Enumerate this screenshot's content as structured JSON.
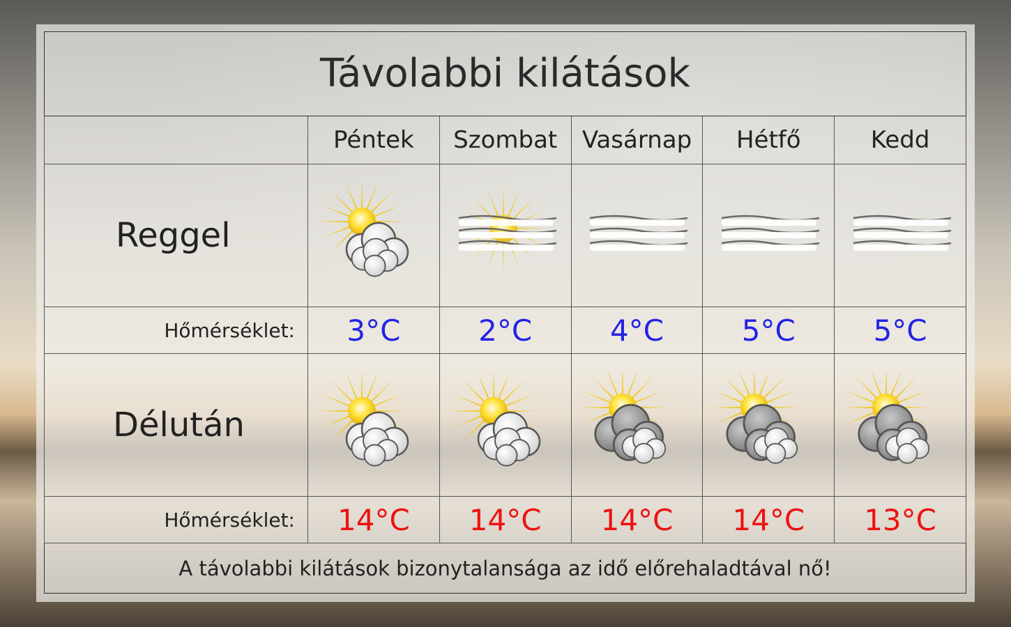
{
  "title": "Távolabbi kilátások",
  "days": [
    "Péntek",
    "Szombat",
    "Vasárnap",
    "Hétfő",
    "Kedd"
  ],
  "morning": {
    "label": "Reggel",
    "icons": [
      "sun-light-clouds-icon",
      "sun-fog-icon",
      "fog-icon",
      "fog-icon",
      "fog-icon"
    ],
    "temp_label": "Hőmérséklet:",
    "temps": [
      "3°C",
      "2°C",
      "4°C",
      "5°C",
      "5°C"
    ]
  },
  "afternoon": {
    "label": "Délután",
    "icons": [
      "sun-light-clouds-icon",
      "sun-light-clouds-icon",
      "sun-dark-clouds-icon",
      "sun-dark-clouds-icon",
      "sun-dark-clouds-icon"
    ],
    "temp_label": "Hőmérséklet:",
    "temps": [
      "14°C",
      "14°C",
      "14°C",
      "14°C",
      "13°C"
    ]
  },
  "footer": "A távolabbi kilátások bizonytalansága az idő előrehaladtával nő!",
  "colors": {
    "min_temp": "#2323e6",
    "max_temp": "#ee1111"
  }
}
